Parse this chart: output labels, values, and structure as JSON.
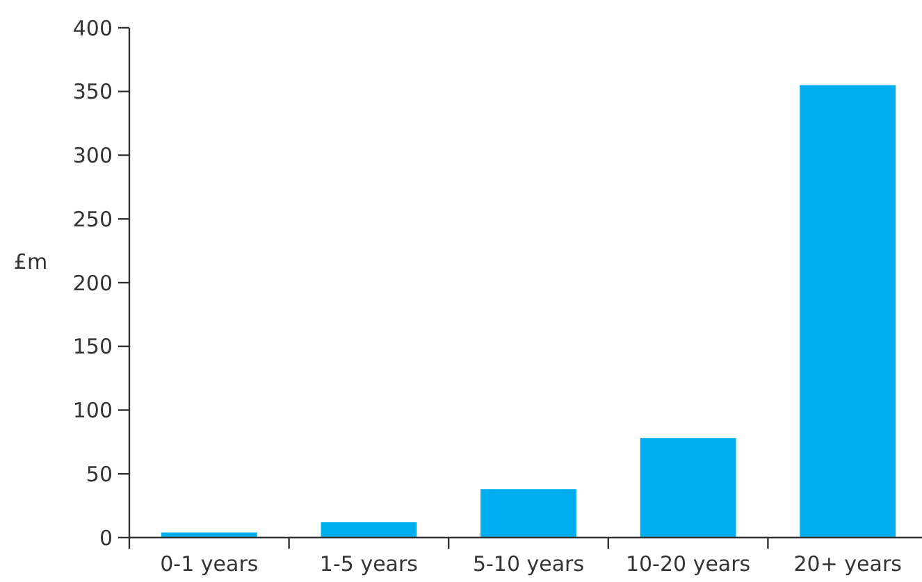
{
  "chart_data": {
    "type": "bar",
    "ylabel": "£m",
    "categories": [
      "0-1 years",
      "1-5 years",
      "5-10 years",
      "10-20 years",
      "20+ years"
    ],
    "values": [
      4,
      12,
      38,
      78,
      355
    ],
    "color": "#00aeef",
    "ylim": [
      0,
      400
    ],
    "yticks": [
      0,
      50,
      100,
      150,
      200,
      250,
      300,
      350,
      400
    ],
    "grid": false
  }
}
